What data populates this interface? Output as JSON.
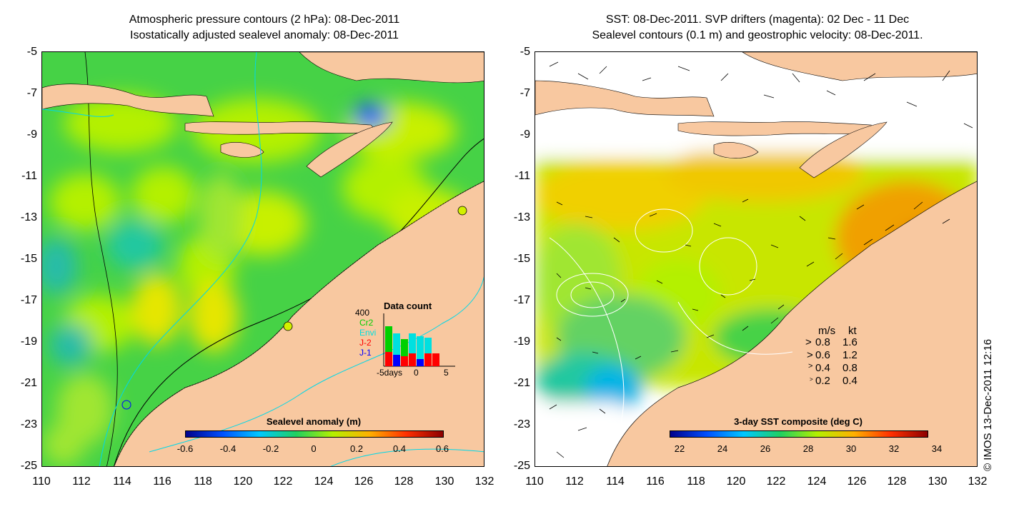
{
  "left_panel": {
    "title_line1": "Atmospheric pressure contours (2 hPa): 08-Dec-2011",
    "title_line2": "Isostatically adjusted sealevel anomaly: 08-Dec-2011",
    "colorbar_title": "Sealevel anomaly (m)",
    "colorbar_ticks": [
      "-0.6",
      "-0.4",
      "-0.2",
      "0",
      "0.2",
      "0.4",
      "0.6"
    ],
    "colorbar_colors": [
      "#00008c",
      "#0050ff",
      "#00c8ff",
      "#20d060",
      "#b4f000",
      "#ffb000",
      "#ff3000",
      "#8c0000"
    ],
    "inset": {
      "title": "Data count",
      "ymax_label": "400",
      "satellites": [
        {
          "name": "Cr2",
          "color": "#00d000"
        },
        {
          "name": "Envi",
          "color": "#00e0e0"
        },
        {
          "name": "J-2",
          "color": "#ff0000"
        },
        {
          "name": "J-1",
          "color": "#0000ff"
        }
      ],
      "x_ticks": [
        "-5days",
        "0",
        "5"
      ]
    }
  },
  "right_panel": {
    "title_line1": "SST: 08-Dec-2011. SVP drifters (magenta): 02 Dec - 11 Dec",
    "title_line2": "Sealevel contours (0.1 m) and geostrophic velocity: 08-Dec-2011.",
    "colorbar_title": "3-day SST composite (deg C)",
    "colorbar_ticks": [
      "22",
      "24",
      "26",
      "28",
      "30",
      "32",
      "34"
    ],
    "colorbar_colors": [
      "#00008c",
      "#0050ff",
      "#00c8ff",
      "#20d060",
      "#b4f000",
      "#ffb000",
      "#ff3000",
      "#8c0000"
    ],
    "velocity_legend": {
      "header_ms": "m/s",
      "header_kt": "kt",
      "rows": [
        {
          "ms": "0.8",
          "kt": "1.6"
        },
        {
          "ms": "0.6",
          "kt": "1.2"
        },
        {
          "ms": "0.4",
          "kt": "0.8"
        },
        {
          "ms": "0.2",
          "kt": "0.4"
        }
      ]
    }
  },
  "axes": {
    "lat_ticks": [
      "-5",
      "-7",
      "-9",
      "-11",
      "-13",
      "-15",
      "-17",
      "-19",
      "-21",
      "-23",
      "-25"
    ],
    "lon_ticks": [
      "110",
      "112",
      "114",
      "116",
      "118",
      "120",
      "122",
      "124",
      "126",
      "128",
      "130",
      "132"
    ]
  },
  "copyright": "© IMOS 13-Dec-2011 12:16",
  "colors": {
    "land": "#f8c8a0",
    "ocean_green": "#3cd23c",
    "ocean_yellowgreen": "#a0e632",
    "contour_cyan": "#00d8e8"
  }
}
